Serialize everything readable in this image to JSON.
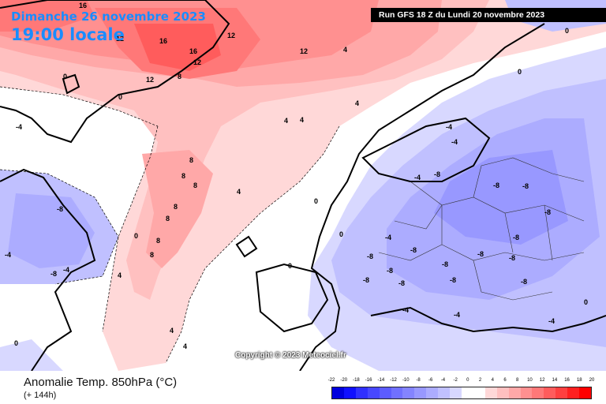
{
  "header": {
    "date_label": "Dimanche 26 novembre 2023",
    "time_label": "19:00 locale",
    "run_label": "Run GFS 18 Z du Lundi 20 novembre 2023"
  },
  "map": {
    "copyright": "Copyright © 2023 Meteociel.fr",
    "contour_labels": [
      "-8",
      "-4",
      "0",
      "4",
      "8",
      "12",
      "16"
    ]
  },
  "legend": {
    "title": "Anomalie Temp. 850hPa (°C)",
    "subtitle": "(+ 144h)",
    "scale_ticks": [
      "-22",
      "-20",
      "-18",
      "-16",
      "-14",
      "-12",
      "-10",
      "-8",
      "-6",
      "-4",
      "-2",
      "0",
      "2",
      "4",
      "6",
      "8",
      "10",
      "12",
      "14",
      "16",
      "18",
      "20"
    ],
    "scale_colors": [
      "#0000dd",
      "#1010ff",
      "#3030ff",
      "#4848ff",
      "#5c5cff",
      "#7070ff",
      "#8484ff",
      "#9898ff",
      "#acacff",
      "#c0c0ff",
      "#d8d8ff",
      "#ffffff",
      "#ffffff",
      "#ffd8d8",
      "#ffc0c0",
      "#ffa8a8",
      "#ff9090",
      "#ff7878",
      "#ff5c5c",
      "#ff4040",
      "#ff2020",
      "#ff0000"
    ]
  }
}
